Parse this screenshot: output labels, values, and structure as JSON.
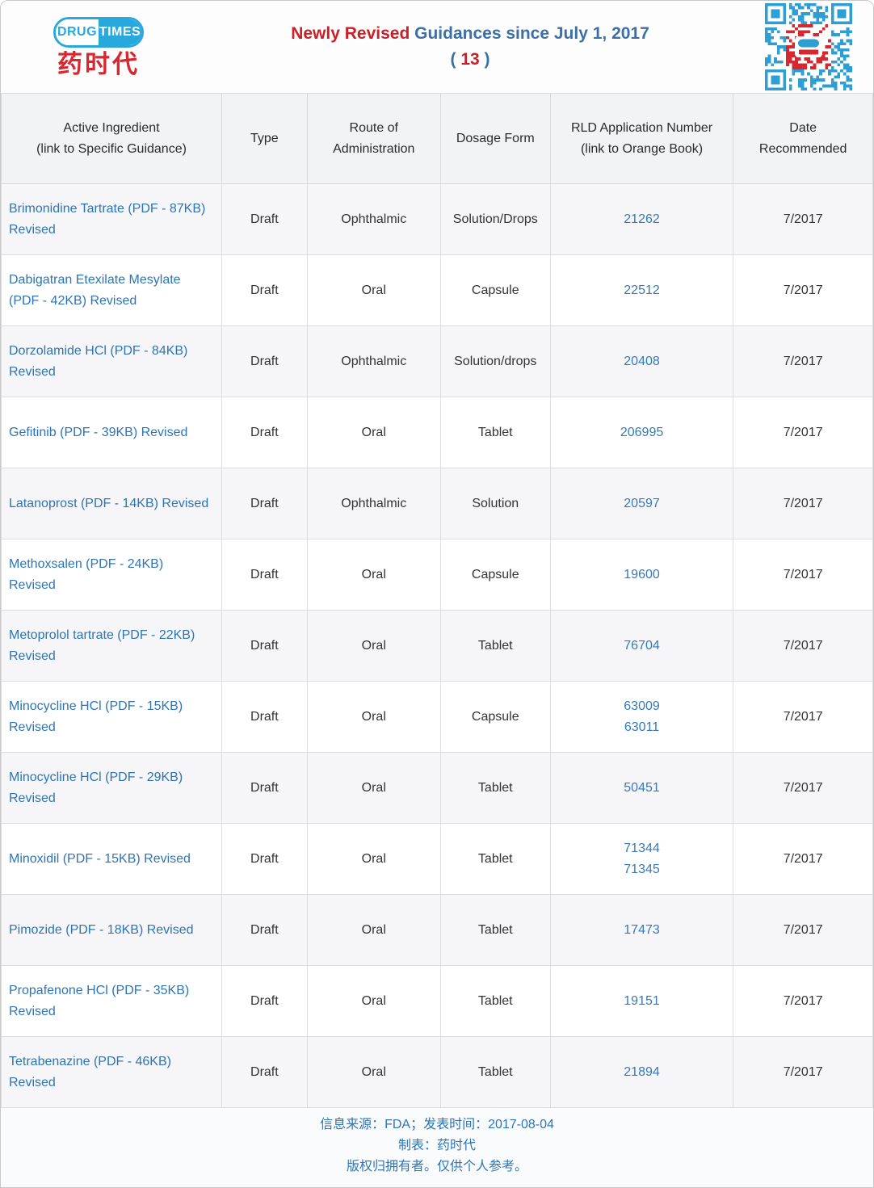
{
  "header": {
    "logo": {
      "drug": "DRUG",
      "times": "TIMES",
      "chinese": "药时代"
    },
    "title": {
      "highlight": "Newly Revised",
      "rest": "Guidances since July 1, 2017",
      "paren_open": "( ",
      "count": "13",
      "paren_close": " )"
    }
  },
  "colors": {
    "title_red": "#cb2027",
    "title_blue": "#3c6fa8",
    "link_blue": "#2e74b5",
    "logo_blue": "#29a8de",
    "logo_red": "#d7282f",
    "qr_blue": "#2e9fd4",
    "qr_red": "#d7282f"
  },
  "table": {
    "columns": [
      "Active Ingredient\n(link to Specific Guidance)",
      "Type",
      "Route of\nAdministration",
      "Dosage Form",
      "RLD Application Number\n(link to Orange Book)",
      "Date\nRecommended"
    ],
    "rows": [
      {
        "ingredient": "Brimonidine Tartrate (PDF - 87KB) Revised",
        "type": "Draft",
        "route": "Ophthalmic",
        "dosage": "Solution/Drops",
        "rld": "21262",
        "date": "7/2017"
      },
      {
        "ingredient": "Dabigatran Etexilate Mesylate (PDF - 42KB) Revised",
        "type": "Draft",
        "route": "Oral",
        "dosage": "Capsule",
        "rld": "22512",
        "date": "7/2017"
      },
      {
        "ingredient": "Dorzolamide HCl (PDF - 84KB) Revised",
        "type": "Draft",
        "route": "Ophthalmic",
        "dosage": "Solution/drops",
        "rld": "20408",
        "date": "7/2017"
      },
      {
        "ingredient": "Gefitinib (PDF - 39KB) Revised",
        "type": "Draft",
        "route": "Oral",
        "dosage": "Tablet",
        "rld": "206995",
        "date": "7/2017"
      },
      {
        "ingredient": "Latanoprost (PDF - 14KB) Revised",
        "type": "Draft",
        "route": "Ophthalmic",
        "dosage": "Solution",
        "rld": "20597",
        "date": "7/2017"
      },
      {
        "ingredient": "Methoxsalen (PDF - 24KB) Revised",
        "type": "Draft",
        "route": "Oral",
        "dosage": "Capsule",
        "rld": "19600",
        "date": "7/2017"
      },
      {
        "ingredient": "Metoprolol tartrate (PDF - 22KB) Revised",
        "type": "Draft",
        "route": "Oral",
        "dosage": "Tablet",
        "rld": "76704",
        "date": "7/2017"
      },
      {
        "ingredient": "Minocycline HCl (PDF - 15KB) Revised",
        "type": "Draft",
        "route": "Oral",
        "dosage": "Capsule",
        "rld": "63009\n63011",
        "date": "7/2017"
      },
      {
        "ingredient": "Minocycline HCl (PDF - 29KB) Revised",
        "type": "Draft",
        "route": "Oral",
        "dosage": "Tablet",
        "rld": "50451",
        "date": "7/2017"
      },
      {
        "ingredient": "Minoxidil (PDF - 15KB) Revised",
        "type": "Draft",
        "route": "Oral",
        "dosage": "Tablet",
        "rld": "71344\n71345",
        "date": "7/2017"
      },
      {
        "ingredient": "Pimozide (PDF - 18KB) Revised",
        "type": "Draft",
        "route": "Oral",
        "dosage": "Tablet",
        "rld": "17473",
        "date": "7/2017"
      },
      {
        "ingredient": "Propafenone HCl (PDF - 35KB) Revised",
        "type": "Draft",
        "route": "Oral",
        "dosage": "Tablet",
        "rld": "19151",
        "date": "7/2017"
      },
      {
        "ingredient": "Tetrabenazine (PDF - 46KB) Revised",
        "type": "Draft",
        "route": "Oral",
        "dosage": "Tablet",
        "rld": "21894",
        "date": "7/2017"
      }
    ]
  },
  "footer": {
    "line1": "信息来源：FDA；发表时间：2017-08-04",
    "line2": "制表：药时代",
    "line3": "版权归拥有者。仅供个人参考。"
  }
}
